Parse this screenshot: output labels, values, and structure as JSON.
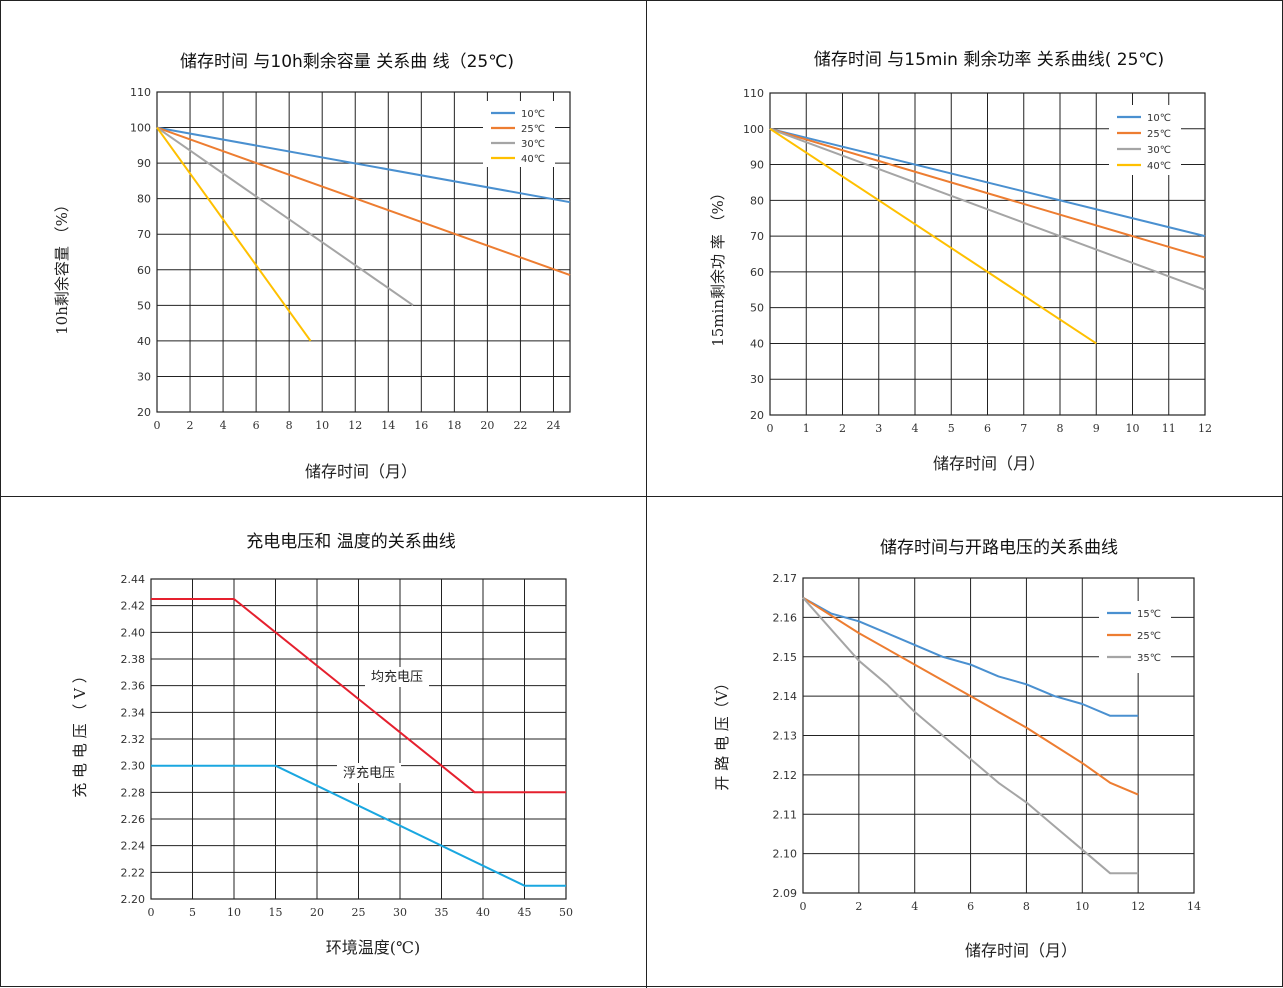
{
  "chart_data": [
    {
      "type": "line",
      "title": "储存时间 与10h剩余容量 关系曲 线（25℃)",
      "xlabel": "储存时间（月）",
      "ylabel": "10h剩余容量 （%）",
      "x_ticks": [
        "0",
        "2",
        "4",
        "6",
        "8",
        "10",
        "12",
        "14",
        "16",
        "18",
        "20",
        "22",
        "24"
      ],
      "y_ticks": [
        "20",
        "30",
        "40",
        "50",
        "60",
        "70",
        "80",
        "90",
        "100",
        "110"
      ],
      "xlim": [
        0,
        25
      ],
      "ylim": [
        20,
        110
      ],
      "grid": true,
      "legend_position": "top-right",
      "series": [
        {
          "name": "10℃",
          "color": "#4a90d0",
          "x": [
            0,
            25
          ],
          "y": [
            100,
            79
          ]
        },
        {
          "name": "25℃",
          "color": "#ed7d31",
          "x": [
            0,
            25
          ],
          "y": [
            100,
            58.5
          ]
        },
        {
          "name": "30℃",
          "color": "#a5a5a5",
          "x": [
            0,
            15.5
          ],
          "y": [
            100,
            50
          ]
        },
        {
          "name": "40℃",
          "color": "#ffc000",
          "x": [
            0,
            9.3
          ],
          "y": [
            100,
            40
          ]
        }
      ]
    },
    {
      "type": "line",
      "title": "储存时间 与15min 剩余功率 关系曲线( 25℃)",
      "xlabel": "储存时间（月）",
      "ylabel": "15min剩余功 率 （%）",
      "x_ticks": [
        "0",
        "1",
        "2",
        "3",
        "4",
        "5",
        "6",
        "7",
        "8",
        "9",
        "10",
        "11",
        "12"
      ],
      "y_ticks": [
        "20",
        "30",
        "40",
        "50",
        "60",
        "70",
        "80",
        "90",
        "100",
        "110"
      ],
      "xlim": [
        0,
        12
      ],
      "ylim": [
        20,
        110
      ],
      "grid": true,
      "legend_position": "top-right",
      "series": [
        {
          "name": "10℃",
          "color": "#4a90d0",
          "x": [
            0,
            12
          ],
          "y": [
            100,
            70
          ]
        },
        {
          "name": "25℃",
          "color": "#ed7d31",
          "x": [
            0,
            12
          ],
          "y": [
            100,
            64
          ]
        },
        {
          "name": "30℃",
          "color": "#a5a5a5",
          "x": [
            0,
            12
          ],
          "y": [
            100,
            55
          ]
        },
        {
          "name": "40℃",
          "color": "#ffc000",
          "x": [
            0,
            9
          ],
          "y": [
            100,
            40
          ]
        }
      ]
    },
    {
      "type": "line",
      "title": "充电电压和 温度的关系曲线",
      "xlabel": "环境温度(℃)",
      "ylabel": "充 电 电 压 （ V ）",
      "x_ticks": [
        "0",
        "5",
        "10",
        "15",
        "20",
        "25",
        "30",
        "35",
        "40",
        "45",
        "50"
      ],
      "y_ticks": [
        "2.20",
        "2.22",
        "2.24",
        "2.26",
        "2.28",
        "2.30",
        "2.32",
        "2.34",
        "2.36",
        "2.38",
        "2.40",
        "2.42",
        "2.44"
      ],
      "xlim": [
        0,
        50
      ],
      "ylim": [
        2.2,
        2.44
      ],
      "grid": true,
      "annotations": [
        "均充电压",
        "浮充电压"
      ],
      "series": [
        {
          "name": "均充电压",
          "color": "#e5202e",
          "x": [
            0,
            10,
            39,
            50
          ],
          "y": [
            2.425,
            2.425,
            2.28,
            2.28
          ]
        },
        {
          "name": "浮充电压",
          "color": "#1aa7e0",
          "x": [
            0,
            15,
            45,
            50
          ],
          "y": [
            2.3,
            2.3,
            2.21,
            2.21
          ]
        }
      ]
    },
    {
      "type": "line",
      "title": "储存时间与开路电压的关系曲线",
      "xlabel": "储存时间（月）",
      "ylabel": "开 路 电 压（V）",
      "x_ticks": [
        "0",
        "2",
        "4",
        "6",
        "8",
        "10",
        "12",
        "14"
      ],
      "y_ticks": [
        "2.09",
        "2.10",
        "2.11",
        "2.12",
        "2.13",
        "2.14",
        "2.15",
        "2.16",
        "2.17"
      ],
      "xlim": [
        0,
        14
      ],
      "ylim": [
        2.09,
        2.17
      ],
      "grid": true,
      "legend_position": "top-right",
      "series": [
        {
          "name": "15℃",
          "color": "#4a90d0",
          "x": [
            0,
            1,
            2,
            3,
            4,
            5,
            6,
            7,
            8,
            9,
            10,
            11,
            12
          ],
          "y": [
            2.165,
            2.161,
            2.159,
            2.156,
            2.153,
            2.15,
            2.148,
            2.145,
            2.143,
            2.14,
            2.138,
            2.135,
            2.135
          ]
        },
        {
          "name": "25℃",
          "color": "#ed7d31",
          "x": [
            0,
            2,
            4,
            6,
            8,
            10,
            11,
            12
          ],
          "y": [
            2.165,
            2.156,
            2.148,
            2.14,
            2.132,
            2.123,
            2.118,
            2.115
          ]
        },
        {
          "name": "35℃",
          "color": "#a5a5a5",
          "x": [
            0,
            1,
            2,
            3,
            4,
            5,
            6,
            7,
            8,
            9,
            10,
            11,
            12
          ],
          "y": [
            2.165,
            2.157,
            2.149,
            2.143,
            2.136,
            2.13,
            2.124,
            2.118,
            2.113,
            2.107,
            2.101,
            2.095,
            2.095
          ]
        }
      ]
    }
  ]
}
